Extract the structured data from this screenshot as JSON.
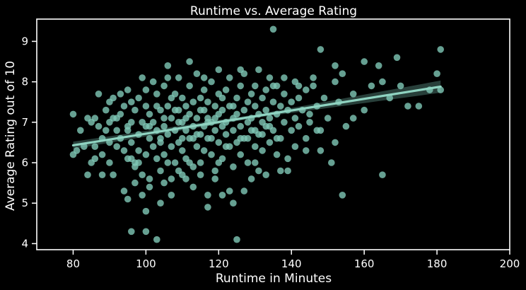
{
  "chart_data": {
    "type": "scatter",
    "title": "Runtime vs. Average Rating",
    "xlabel": "Runtime in Minutes",
    "ylabel": "Average Rating out of 10",
    "xlim": [
      70,
      200
    ],
    "ylim": [
      3.85,
      9.55
    ],
    "xticks": [
      80,
      100,
      120,
      140,
      160,
      180,
      200
    ],
    "yticks": [
      4,
      5,
      6,
      7,
      8,
      9
    ],
    "grid": false,
    "colors": {
      "background": "#000000",
      "frame": "#ffffff",
      "text": "#ffffff",
      "points": "#7fc8b7",
      "regression": "#8fd3c1",
      "confidence_band": "#2f4a44"
    },
    "regression": {
      "x_start": 80,
      "y_start": 6.43,
      "x_end": 181,
      "y_end": 7.88,
      "band_halfwidth_start": 0.09,
      "band_halfwidth_mid": 0.04,
      "band_halfwidth_end": 0.15
    },
    "points": [
      [
        80,
        7.2
      ],
      [
        80,
        6.2
      ],
      [
        81,
        6.3
      ],
      [
        83,
        6.4
      ],
      [
        84,
        7.1
      ],
      [
        85,
        7.0
      ],
      [
        85,
        6.0
      ],
      [
        86,
        7.1
      ],
      [
        86,
        6.4
      ],
      [
        87,
        7.7
      ],
      [
        87,
        6.9
      ],
      [
        88,
        6.6
      ],
      [
        88,
        6.2
      ],
      [
        89,
        7.3
      ],
      [
        89,
        6.8
      ],
      [
        90,
        7.0
      ],
      [
        90,
        6.5
      ],
      [
        90,
        6.0
      ],
      [
        91,
        7.6
      ],
      [
        91,
        7.1
      ],
      [
        92,
        6.4
      ],
      [
        92,
        6.8
      ],
      [
        93,
        7.7
      ],
      [
        93,
        7.2
      ],
      [
        93,
        6.6
      ],
      [
        94,
        6.3
      ],
      [
        94,
        7.4
      ],
      [
        95,
        7.8
      ],
      [
        95,
        6.8
      ],
      [
        95,
        6.1
      ],
      [
        96,
        7.0
      ],
      [
        96,
        6.5
      ],
      [
        96,
        7.5
      ],
      [
        97,
        6.0
      ],
      [
        97,
        7.3
      ],
      [
        97,
        5.9
      ],
      [
        98,
        6.7
      ],
      [
        98,
        7.6
      ],
      [
        98,
        6.3
      ],
      [
        99,
        7.0
      ],
      [
        99,
        8.1
      ],
      [
        99,
        5.7
      ],
      [
        100,
        6.9
      ],
      [
        100,
        7.4
      ],
      [
        100,
        6.2
      ],
      [
        100,
        7.8
      ],
      [
        101,
        6.6
      ],
      [
        101,
        5.6
      ],
      [
        101,
        7.2
      ],
      [
        102,
        8.0
      ],
      [
        102,
        6.4
      ],
      [
        102,
        7.0
      ],
      [
        103,
        7.7
      ],
      [
        103,
        6.1
      ],
      [
        103,
        6.8
      ],
      [
        104,
        7.3
      ],
      [
        104,
        6.5
      ],
      [
        104,
        5.8
      ],
      [
        105,
        7.9
      ],
      [
        105,
        6.9
      ],
      [
        105,
        6.2
      ],
      [
        106,
        7.4
      ],
      [
        106,
        6.7
      ],
      [
        106,
        8.4
      ],
      [
        107,
        7.1
      ],
      [
        107,
        6.4
      ],
      [
        107,
        5.6
      ],
      [
        108,
        7.7
      ],
      [
        108,
        6.8
      ],
      [
        108,
        6.0
      ],
      [
        109,
        7.3
      ],
      [
        109,
        6.5
      ],
      [
        109,
        8.1
      ],
      [
        110,
        7.0
      ],
      [
        110,
        6.3
      ],
      [
        110,
        7.6
      ],
      [
        110,
        5.7
      ],
      [
        111,
        6.8
      ],
      [
        111,
        7.4
      ],
      [
        111,
        6.1
      ],
      [
        112,
        7.9
      ],
      [
        112,
        6.6
      ],
      [
        112,
        7.2
      ],
      [
        113,
        6.9
      ],
      [
        113,
        7.5
      ],
      [
        113,
        5.9
      ],
      [
        114,
        7.1
      ],
      [
        114,
        6.4
      ],
      [
        114,
        8.2
      ],
      [
        115,
        6.7
      ],
      [
        115,
        7.3
      ],
      [
        115,
        6.0
      ],
      [
        116,
        7.8
      ],
      [
        116,
        6.9
      ],
      [
        116,
        6.3
      ],
      [
        117,
        7.1
      ],
      [
        117,
        6.6
      ],
      [
        117,
        7.5
      ],
      [
        118,
        7.0
      ],
      [
        118,
        6.2
      ],
      [
        118,
        8.0
      ],
      [
        119,
        6.8
      ],
      [
        119,
        7.4
      ],
      [
        119,
        5.8
      ],
      [
        120,
        7.2
      ],
      [
        120,
        6.5
      ],
      [
        120,
        7.7
      ],
      [
        121,
        6.9
      ],
      [
        121,
        7.3
      ],
      [
        121,
        6.1
      ],
      [
        122,
        7.8
      ],
      [
        122,
        6.7
      ],
      [
        122,
        7.0
      ],
      [
        123,
        7.4
      ],
      [
        123,
        6.4
      ],
      [
        123,
        8.1
      ],
      [
        124,
        7.1
      ],
      [
        124,
        6.8
      ],
      [
        124,
        5.9
      ],
      [
        125,
        7.6
      ],
      [
        125,
        6.5
      ],
      [
        125,
        7.2
      ],
      [
        126,
        7.9
      ],
      [
        126,
        6.9
      ],
      [
        126,
        6.2
      ],
      [
        127,
        7.3
      ],
      [
        127,
        6.6
      ],
      [
        127,
        8.2
      ],
      [
        128,
        7.0
      ],
      [
        128,
        7.5
      ],
      [
        128,
        6.0
      ],
      [
        129,
        7.7
      ],
      [
        129,
        6.8
      ],
      [
        129,
        7.1
      ],
      [
        130,
        7.4
      ],
      [
        130,
        6.4
      ],
      [
        130,
        7.9
      ],
      [
        131,
        7.2
      ],
      [
        131,
        6.7
      ],
      [
        131,
        5.8
      ],
      [
        132,
        7.6
      ],
      [
        132,
        7.0
      ],
      [
        132,
        6.3
      ],
      [
        133,
        7.8
      ],
      [
        133,
        6.9
      ],
      [
        133,
        7.3
      ],
      [
        134,
        7.1
      ],
      [
        134,
        6.5
      ],
      [
        134,
        8.1
      ],
      [
        135,
        7.5
      ],
      [
        135,
        6.8
      ],
      [
        136,
        7.2
      ],
      [
        136,
        7.9
      ],
      [
        136,
        6.2
      ],
      [
        137,
        7.4
      ],
      [
        137,
        6.6
      ],
      [
        138,
        7.0
      ],
      [
        138,
        7.7
      ],
      [
        139,
        7.3
      ],
      [
        139,
        6.1
      ],
      [
        140,
        7.5
      ],
      [
        140,
        6.8
      ],
      [
        141,
        7.1
      ],
      [
        141,
        8.0
      ],
      [
        142,
        7.6
      ],
      [
        142,
        6.9
      ],
      [
        143,
        7.3
      ],
      [
        144,
        7.8
      ],
      [
        144,
        6.6
      ],
      [
        145,
        7.2
      ],
      [
        146,
        7.9
      ],
      [
        147,
        7.4
      ],
      [
        148,
        6.8
      ],
      [
        149,
        7.6
      ],
      [
        150,
        7.1
      ],
      [
        152,
        8.0
      ],
      [
        153,
        7.5
      ],
      [
        155,
        6.9
      ],
      [
        157,
        7.7
      ],
      [
        160,
        7.3
      ],
      [
        162,
        7.9
      ],
      [
        165,
        8.0
      ],
      [
        167,
        7.6
      ],
      [
        170,
        7.9
      ],
      [
        175,
        7.4
      ],
      [
        180,
        8.2
      ],
      [
        181,
        7.8
      ],
      [
        82,
        6.8
      ],
      [
        84,
        5.7
      ],
      [
        86,
        6.1
      ],
      [
        88,
        5.7
      ],
      [
        90,
        7.5
      ],
      [
        91,
        5.7
      ],
      [
        92,
        7.1
      ],
      [
        94,
        5.3
      ],
      [
        95,
        5.1
      ],
      [
        96,
        6.1
      ],
      [
        97,
        5.5
      ],
      [
        99,
        5.2
      ],
      [
        100,
        4.8
      ],
      [
        101,
        5.4
      ],
      [
        103,
        4.1
      ],
      [
        104,
        5.0
      ],
      [
        105,
        5.5
      ],
      [
        107,
        5.2
      ],
      [
        109,
        5.8
      ],
      [
        111,
        5.6
      ],
      [
        113,
        5.4
      ],
      [
        115,
        5.7
      ],
      [
        117,
        4.9
      ],
      [
        117,
        5.2
      ],
      [
        119,
        5.6
      ],
      [
        121,
        5.2
      ],
      [
        123,
        5.3
      ],
      [
        124,
        5.0
      ],
      [
        125,
        4.1
      ],
      [
        127,
        5.3
      ],
      [
        129,
        5.6
      ],
      [
        130,
        6.0
      ],
      [
        133,
        5.7
      ],
      [
        137,
        5.8
      ],
      [
        148,
        6.3
      ],
      [
        151,
        6.0
      ],
      [
        154,
        5.2
      ],
      [
        165,
        5.7
      ],
      [
        96,
        4.3
      ],
      [
        100,
        4.3
      ],
      [
        135,
        9.3
      ],
      [
        148,
        8.8
      ],
      [
        152,
        8.4
      ],
      [
        154,
        8.2
      ],
      [
        160,
        8.5
      ],
      [
        164,
        8.4
      ],
      [
        169,
        8.6
      ],
      [
        181,
        8.8
      ],
      [
        172,
        7.4
      ],
      [
        178,
        7.8
      ],
      [
        157,
        7.1
      ],
      [
        152,
        6.5
      ],
      [
        147,
        6.8
      ],
      [
        145,
        7.0
      ],
      [
        144,
        6.3
      ],
      [
        141,
        6.4
      ],
      [
        139,
        5.8
      ],
      [
        95,
        6.9
      ],
      [
        98,
        6.0
      ],
      [
        101,
        6.9
      ],
      [
        104,
        6.6
      ],
      [
        106,
        6.0
      ],
      [
        108,
        7.3
      ],
      [
        110,
        6.6
      ],
      [
        112,
        6.0
      ],
      [
        114,
        6.7
      ],
      [
        116,
        7.3
      ],
      [
        118,
        6.6
      ],
      [
        120,
        6.0
      ],
      [
        122,
        6.4
      ],
      [
        124,
        7.4
      ],
      [
        126,
        6.6
      ],
      [
        128,
        6.6
      ],
      [
        130,
        6.8
      ],
      [
        132,
        6.7
      ],
      [
        134,
        6.9
      ],
      [
        136,
        6.6
      ],
      [
        103,
        7.4
      ],
      [
        105,
        7.1
      ],
      [
        107,
        7.6
      ],
      [
        109,
        7.0
      ],
      [
        111,
        7.1
      ],
      [
        113,
        6.6
      ],
      [
        115,
        7.6
      ],
      [
        117,
        7.0
      ],
      [
        119,
        7.1
      ],
      [
        121,
        7.6
      ],
      [
        106,
        8.1
      ],
      [
        112,
        8.5
      ],
      [
        116,
        8.1
      ],
      [
        120,
        8.3
      ],
      [
        126,
        8.3
      ],
      [
        131,
        8.3
      ],
      [
        135,
        7.9
      ],
      [
        138,
        8.1
      ],
      [
        142,
        7.9
      ],
      [
        146,
        8.1
      ]
    ]
  }
}
